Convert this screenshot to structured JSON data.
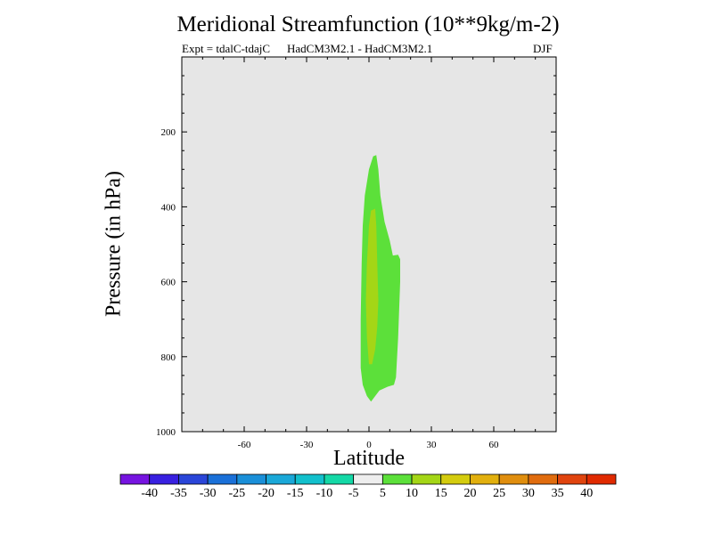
{
  "header": {
    "title": "Meridional Streamfunction (10**9kg/m-2)",
    "expt": "Expt = tdalC-tdajC",
    "models": "HadCM3M2.1 - HadCM3M2.1",
    "season": "DJF"
  },
  "chart_data": {
    "type": "contour",
    "title": "Meridional Streamfunction (10**9kg/m-2)",
    "xlabel": "Latitude",
    "ylabel": "Pressure (in hPa)",
    "xlim": [
      -90,
      90
    ],
    "ylim": [
      1000,
      0
    ],
    "xticks": [
      -60,
      -30,
      0,
      30,
      60
    ],
    "yticks": [
      200,
      400,
      600,
      800,
      1000
    ],
    "background_color": "#e6e6e6",
    "regions": [
      {
        "name": "5-10",
        "color": "#5ce03a",
        "points": [
          [
            -3,
            875
          ],
          [
            -4,
            830
          ],
          [
            -4,
            700
          ],
          [
            -3.5,
            550
          ],
          [
            -3,
            450
          ],
          [
            -2,
            370
          ],
          [
            0,
            300
          ],
          [
            2,
            265
          ],
          [
            3.5,
            262
          ],
          [
            4.5,
            300
          ],
          [
            5.5,
            370
          ],
          [
            7.5,
            440
          ],
          [
            10,
            490
          ],
          [
            11.5,
            530
          ],
          [
            14,
            528
          ],
          [
            15,
            540
          ],
          [
            15,
            600
          ],
          [
            14,
            750
          ],
          [
            13,
            855
          ],
          [
            12,
            875
          ],
          [
            9,
            880
          ],
          [
            5,
            890
          ],
          [
            1,
            920
          ],
          [
            -1,
            905
          ]
        ]
      },
      {
        "name": "10-15",
        "color": "#a4d616",
        "points": [
          [
            0,
            820
          ],
          [
            -1,
            750
          ],
          [
            -1.5,
            650
          ],
          [
            -1,
            550
          ],
          [
            0,
            450
          ],
          [
            1,
            410
          ],
          [
            3,
            405
          ],
          [
            3.5,
            450
          ],
          [
            4,
            550
          ],
          [
            4.5,
            650
          ],
          [
            4,
            720
          ],
          [
            3,
            780
          ],
          [
            1.5,
            820
          ]
        ]
      }
    ],
    "colorbar": {
      "labels": [
        "-40",
        "-35",
        "-30",
        "-25",
        "-20",
        "-15",
        "-10",
        "-5",
        "5",
        "10",
        "15",
        "20",
        "25",
        "30",
        "35",
        "40"
      ],
      "colors": [
        "#7614e0",
        "#3820e0",
        "#2a45d8",
        "#1a70d8",
        "#1a8fd8",
        "#1aa8d8",
        "#12c0cc",
        "#14d8a6",
        "#eeeeee",
        "#5ce03a",
        "#a4d616",
        "#d4cc0e",
        "#e2b00e",
        "#e08e0e",
        "#e06c0e",
        "#e0440e",
        "#e02a00"
      ]
    }
  }
}
